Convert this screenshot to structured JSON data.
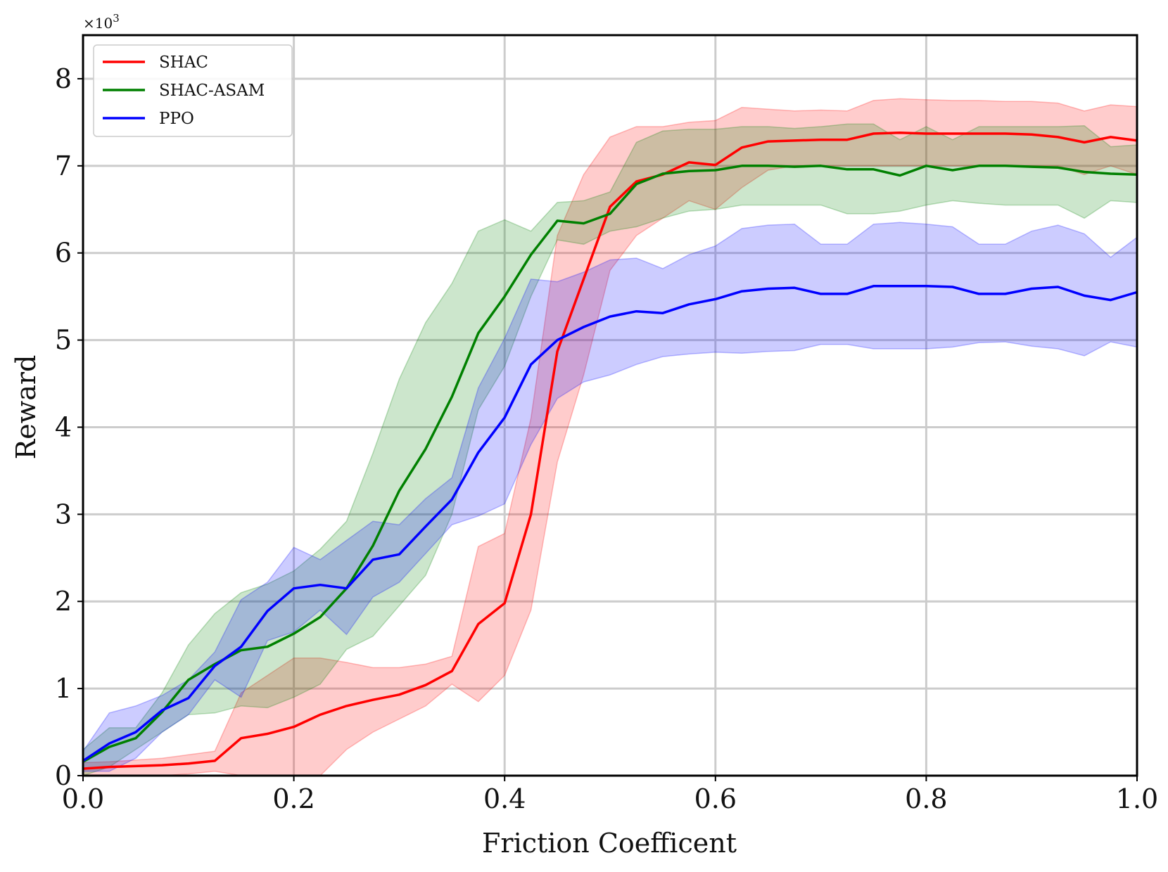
{
  "chart_data": {
    "type": "line",
    "title": "",
    "xlabel": "Friction Coefficent",
    "ylabel": "Reward",
    "y_multiplier": "×10",
    "y_multiplier_exp": "3",
    "xlim": [
      0,
      1
    ],
    "ylim": [
      0,
      8.5
    ],
    "xticks": [
      0.0,
      0.2,
      0.4,
      0.6,
      0.8,
      1.0
    ],
    "xtick_labels": [
      "0.0",
      "0.2",
      "0.4",
      "0.6",
      "0.8",
      "1.0"
    ],
    "yticks": [
      0,
      1,
      2,
      3,
      4,
      5,
      6,
      7,
      8
    ],
    "ytick_labels": [
      "0",
      "1",
      "2",
      "3",
      "4",
      "5",
      "6",
      "7",
      "8"
    ],
    "grid": true,
    "legend_position": "top-left",
    "x": [
      0.0,
      0.025,
      0.05,
      0.075,
      0.1,
      0.125,
      0.15,
      0.175,
      0.2,
      0.225,
      0.25,
      0.275,
      0.3,
      0.325,
      0.35,
      0.375,
      0.4,
      0.425,
      0.45,
      0.475,
      0.5,
      0.525,
      0.55,
      0.575,
      0.6,
      0.625,
      0.65,
      0.675,
      0.7,
      0.725,
      0.75,
      0.775,
      0.8,
      0.825,
      0.85,
      0.875,
      0.9,
      0.925,
      0.95,
      0.975,
      1.0
    ],
    "series": [
      {
        "name": "SHAC",
        "color": "#ff0000",
        "band_color": "#ff0000",
        "mean": [
          0.08,
          0.1,
          0.11,
          0.12,
          0.14,
          0.17,
          0.43,
          0.48,
          0.56,
          0.7,
          0.8,
          0.87,
          0.93,
          1.04,
          1.2,
          1.74,
          1.98,
          3.0,
          4.87,
          5.7,
          6.53,
          6.82,
          6.9,
          7.04,
          7.01,
          7.21,
          7.28,
          7.29,
          7.3,
          7.3,
          7.37,
          7.38,
          7.37,
          7.37,
          7.37,
          7.37,
          7.36,
          7.33,
          7.27,
          7.33,
          7.29
        ],
        "lower": [
          0.0,
          0.0,
          0.0,
          0.0,
          0.02,
          0.05,
          0.0,
          0.0,
          0.0,
          0.0,
          0.3,
          0.5,
          0.65,
          0.8,
          1.05,
          0.85,
          1.15,
          1.9,
          3.6,
          4.6,
          5.8,
          6.2,
          6.4,
          6.6,
          6.5,
          6.75,
          6.95,
          7.0,
          7.0,
          7.0,
          7.0,
          7.0,
          7.0,
          7.0,
          7.0,
          7.0,
          7.0,
          7.0,
          6.9,
          7.0,
          6.9
        ],
        "upper": [
          0.15,
          0.16,
          0.18,
          0.2,
          0.24,
          0.28,
          0.95,
          1.15,
          1.35,
          1.35,
          1.3,
          1.24,
          1.24,
          1.28,
          1.37,
          2.63,
          2.78,
          4.1,
          6.2,
          6.9,
          7.33,
          7.45,
          7.45,
          7.5,
          7.52,
          7.67,
          7.65,
          7.63,
          7.64,
          7.63,
          7.75,
          7.77,
          7.76,
          7.75,
          7.75,
          7.74,
          7.74,
          7.72,
          7.63,
          7.7,
          7.68
        ]
      },
      {
        "name": "SHAC-ASAM",
        "color": "#008000",
        "band_color": "#008000",
        "mean": [
          0.16,
          0.33,
          0.43,
          0.73,
          1.1,
          1.28,
          1.44,
          1.48,
          1.63,
          1.82,
          2.15,
          2.64,
          3.27,
          3.75,
          4.35,
          5.08,
          5.5,
          5.98,
          6.37,
          6.34,
          6.45,
          6.79,
          6.91,
          6.94,
          6.95,
          7.0,
          7.0,
          6.99,
          7.0,
          6.96,
          6.96,
          6.89,
          7.0,
          6.95,
          7.0,
          7.0,
          6.99,
          6.98,
          6.93,
          6.91,
          6.9
        ],
        "lower": [
          0.0,
          0.1,
          0.3,
          0.5,
          0.7,
          0.72,
          0.8,
          0.78,
          0.9,
          1.05,
          1.45,
          1.6,
          1.95,
          2.3,
          3.0,
          4.2,
          4.7,
          5.5,
          6.15,
          6.1,
          6.25,
          6.3,
          6.4,
          6.48,
          6.5,
          6.55,
          6.55,
          6.55,
          6.55,
          6.45,
          6.45,
          6.48,
          6.55,
          6.6,
          6.57,
          6.55,
          6.55,
          6.55,
          6.4,
          6.6,
          6.58
        ],
        "upper": [
          0.3,
          0.55,
          0.55,
          0.95,
          1.5,
          1.86,
          2.1,
          2.2,
          2.35,
          2.6,
          2.92,
          3.7,
          4.55,
          5.2,
          5.65,
          6.25,
          6.38,
          6.25,
          6.58,
          6.6,
          6.7,
          7.27,
          7.4,
          7.42,
          7.42,
          7.45,
          7.45,
          7.43,
          7.45,
          7.48,
          7.48,
          7.3,
          7.45,
          7.3,
          7.45,
          7.45,
          7.45,
          7.45,
          7.46,
          7.22,
          7.24
        ]
      },
      {
        "name": "PPO",
        "color": "#0000ff",
        "band_color": "#0000ff",
        "mean": [
          0.17,
          0.37,
          0.5,
          0.75,
          0.89,
          1.26,
          1.48,
          1.89,
          2.15,
          2.19,
          2.15,
          2.48,
          2.54,
          2.86,
          3.17,
          3.71,
          4.11,
          4.72,
          5.0,
          5.15,
          5.27,
          5.33,
          5.31,
          5.41,
          5.47,
          5.56,
          5.59,
          5.6,
          5.53,
          5.53,
          5.62,
          5.62,
          5.62,
          5.61,
          5.53,
          5.53,
          5.59,
          5.61,
          5.51,
          5.46,
          5.55
        ],
        "lower": [
          0.05,
          0.05,
          0.2,
          0.5,
          0.7,
          1.1,
          0.9,
          1.55,
          1.65,
          1.9,
          1.62,
          2.05,
          2.22,
          2.55,
          2.88,
          2.98,
          3.12,
          3.8,
          4.33,
          4.52,
          4.6,
          4.72,
          4.81,
          4.84,
          4.86,
          4.85,
          4.87,
          4.88,
          4.95,
          4.95,
          4.9,
          4.9,
          4.9,
          4.92,
          4.97,
          4.98,
          4.93,
          4.9,
          4.82,
          4.98,
          4.92
        ],
        "upper": [
          0.28,
          0.72,
          0.8,
          0.92,
          1.1,
          1.42,
          2.02,
          2.22,
          2.62,
          2.48,
          2.7,
          2.92,
          2.88,
          3.18,
          3.42,
          4.45,
          5.02,
          5.7,
          5.67,
          5.78,
          5.92,
          5.94,
          5.82,
          5.98,
          6.08,
          6.28,
          6.32,
          6.33,
          6.1,
          6.1,
          6.33,
          6.35,
          6.33,
          6.3,
          6.1,
          6.1,
          6.25,
          6.32,
          6.22,
          5.95,
          6.18
        ]
      }
    ]
  }
}
